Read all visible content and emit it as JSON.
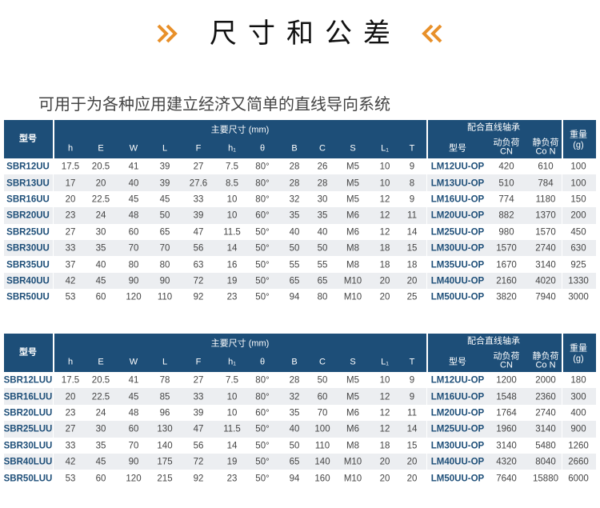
{
  "header": {
    "title": "尺寸和公差",
    "subtitle": "可用于为各种应用建立经济又简单的直线导向系统"
  },
  "tables": [
    {
      "headers": {
        "model": "型号",
        "main": "主要尺寸 (mm)",
        "bearing": "配合直线轴承",
        "weight": [
          "重量",
          "(g)"
        ],
        "columns": [
          "h",
          "E",
          "W",
          "L",
          "F",
          "h₁",
          "θ",
          "B",
          "C",
          "S",
          "L₁",
          "T"
        ],
        "bearing_columns": {
          "model": "型号",
          "dynamic": [
            "动负荷",
            "CN"
          ],
          "static": [
            "静负荷",
            "Co N"
          ]
        }
      },
      "rows": [
        [
          "SBR12UU",
          "17.5",
          "20.5",
          "41",
          "39",
          "27",
          "7.5",
          "80°",
          "28",
          "26",
          "M5",
          "10",
          "9",
          "LM12UU-OP",
          "420",
          "610",
          "100"
        ],
        [
          "SBR13UU",
          "17",
          "20",
          "40",
          "39",
          "27.6",
          "8.5",
          "80°",
          "28",
          "28",
          "M5",
          "10",
          "8",
          "LM13UU-OP",
          "510",
          "784",
          "100"
        ],
        [
          "SBR16UU",
          "20",
          "22.5",
          "45",
          "45",
          "33",
          "10",
          "80°",
          "32",
          "30",
          "M5",
          "12",
          "9",
          "LM16UU-OP",
          "774",
          "1180",
          "150"
        ],
        [
          "SBR20UU",
          "23",
          "24",
          "48",
          "50",
          "39",
          "10",
          "60°",
          "35",
          "35",
          "M6",
          "12",
          "11",
          "LM20UU-OP",
          "882",
          "1370",
          "200"
        ],
        [
          "SBR25UU",
          "27",
          "30",
          "60",
          "65",
          "47",
          "11.5",
          "50°",
          "40",
          "40",
          "M6",
          "12",
          "14",
          "LM25UU-OP",
          "980",
          "1570",
          "450"
        ],
        [
          "SBR30UU",
          "33",
          "35",
          "70",
          "70",
          "56",
          "14",
          "50°",
          "50",
          "50",
          "M8",
          "18",
          "15",
          "LM30UU-OP",
          "1570",
          "2740",
          "630"
        ],
        [
          "SBR35UU",
          "37",
          "40",
          "80",
          "80",
          "63",
          "16",
          "50°",
          "55",
          "55",
          "M8",
          "18",
          "18",
          "LM35UU-OP",
          "1670",
          "3140",
          "925"
        ],
        [
          "SBR40UU",
          "42",
          "45",
          "90",
          "90",
          "72",
          "19",
          "50°",
          "65",
          "65",
          "M10",
          "20",
          "20",
          "LM40UU-OP",
          "2160",
          "4020",
          "1330"
        ],
        [
          "SBR50UU",
          "53",
          "60",
          "120",
          "110",
          "92",
          "23",
          "50°",
          "94",
          "80",
          "M10",
          "20",
          "25",
          "LM50UU-OP",
          "3820",
          "7940",
          "3000"
        ]
      ]
    },
    {
      "headers": {
        "model": "型号",
        "main": "主要尺寸 (mm)",
        "bearing": "配合直线轴承",
        "weight": [
          "重量",
          "(g)"
        ],
        "columns": [
          "h",
          "E",
          "W",
          "L",
          "F",
          "h₁",
          "θ",
          "B",
          "C",
          "S",
          "L₁",
          "T"
        ],
        "bearing_columns": {
          "model": "型号",
          "dynamic": [
            "动负荷",
            "CN"
          ],
          "static": [
            "静负荷",
            "Co N"
          ]
        }
      },
      "rows": [
        [
          "SBR12LUU",
          "17.5",
          "20.5",
          "41",
          "78",
          "27",
          "7.5",
          "80°",
          "28",
          "50",
          "M5",
          "10",
          "9",
          "LM12UU-OP",
          "1200",
          "2000",
          "180"
        ],
        [
          "SBR16LUU",
          "20",
          "22.5",
          "45",
          "85",
          "33",
          "10",
          "80°",
          "32",
          "60",
          "M5",
          "12",
          "9",
          "LM16UU-OP",
          "1548",
          "2360",
          "300"
        ],
        [
          "SBR20LUU",
          "23",
          "24",
          "48",
          "96",
          "39",
          "10",
          "60°",
          "35",
          "70",
          "M6",
          "12",
          "11",
          "LM20UU-OP",
          "1764",
          "2740",
          "400"
        ],
        [
          "SBR25LUU",
          "27",
          "30",
          "60",
          "130",
          "47",
          "11.5",
          "50°",
          "40",
          "100",
          "M6",
          "12",
          "14",
          "LM25UU-OP",
          "1960",
          "3140",
          "900"
        ],
        [
          "SBR30LUU",
          "33",
          "35",
          "70",
          "140",
          "56",
          "14",
          "50°",
          "50",
          "110",
          "M8",
          "18",
          "15",
          "LM30UU-OP",
          "3140",
          "5480",
          "1260"
        ],
        [
          "SBR40LUU",
          "42",
          "45",
          "90",
          "175",
          "72",
          "19",
          "50°",
          "65",
          "140",
          "M10",
          "20",
          "20",
          "LM40UU-OP",
          "4320",
          "8040",
          "2660"
        ],
        [
          "SBR50LUU",
          "53",
          "60",
          "120",
          "215",
          "92",
          "23",
          "50°",
          "94",
          "160",
          "M10",
          "20",
          "20",
          "LM50UU-OP",
          "7640",
          "15880",
          "6000"
        ]
      ]
    }
  ]
}
